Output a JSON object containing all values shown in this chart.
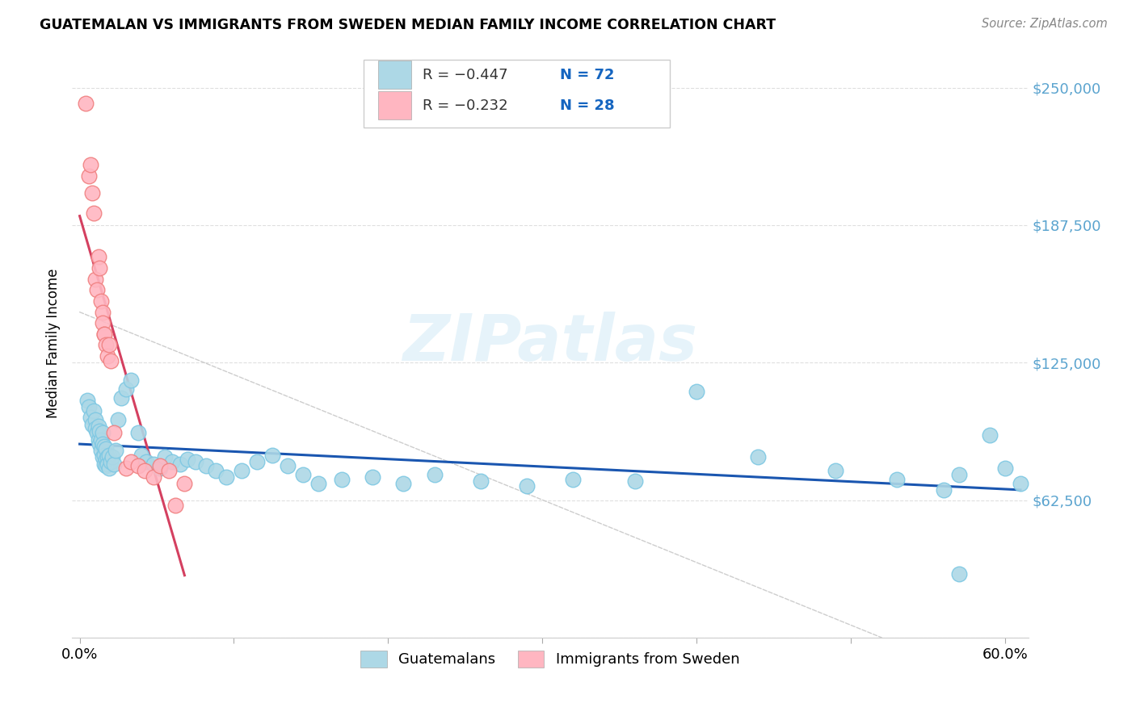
{
  "title": "GUATEMALAN VS IMMIGRANTS FROM SWEDEN MEDIAN FAMILY INCOME CORRELATION CHART",
  "source": "Source: ZipAtlas.com",
  "ylabel": "Median Family Income",
  "watermark": "ZIPatlas",
  "yticks": [
    0,
    62500,
    125000,
    187500,
    250000
  ],
  "ytick_labels": [
    "",
    "$62,500",
    "$125,000",
    "$187,500",
    "$250,000"
  ],
  "xlim": [
    -0.005,
    0.615
  ],
  "ylim": [
    0,
    268000
  ],
  "legend_blue_r": "R = -0.447",
  "legend_blue_n": "N = 72",
  "legend_pink_r": "R = -0.232",
  "legend_pink_n": "N = 28",
  "legend_label_blue": "Guatemalans",
  "legend_label_pink": "Immigrants from Sweden",
  "blue_color": "#ADD8E6",
  "blue_edge_color": "#7EC8E3",
  "blue_line_color": "#1A56B0",
  "pink_color": "#FFB6C1",
  "pink_edge_color": "#F08080",
  "pink_line_color": "#D44060",
  "dashed_line_color": "#C8C8C8",
  "grid_color": "#DCDCDC",
  "ytick_color": "#5BA4CF",
  "blue_scatter_x": [
    0.005,
    0.006,
    0.007,
    0.008,
    0.009,
    0.01,
    0.01,
    0.011,
    0.012,
    0.012,
    0.013,
    0.013,
    0.014,
    0.014,
    0.015,
    0.015,
    0.015,
    0.016,
    0.016,
    0.016,
    0.017,
    0.017,
    0.017,
    0.018,
    0.018,
    0.019,
    0.019,
    0.02,
    0.021,
    0.022,
    0.023,
    0.025,
    0.027,
    0.03,
    0.033,
    0.038,
    0.04,
    0.043,
    0.048,
    0.052,
    0.055,
    0.06,
    0.065,
    0.07,
    0.075,
    0.082,
    0.088,
    0.095,
    0.105,
    0.115,
    0.125,
    0.135,
    0.145,
    0.155,
    0.17,
    0.19,
    0.21,
    0.23,
    0.26,
    0.29,
    0.32,
    0.36,
    0.4,
    0.44,
    0.49,
    0.53,
    0.56,
    0.57,
    0.59,
    0.6,
    0.61,
    0.57
  ],
  "blue_scatter_y": [
    108000,
    105000,
    100000,
    97000,
    103000,
    99000,
    95000,
    93000,
    96000,
    90000,
    94000,
    88000,
    90000,
    85000,
    93000,
    88000,
    82000,
    87000,
    83000,
    79000,
    86000,
    81000,
    78000,
    82000,
    79000,
    83000,
    77000,
    80000,
    82000,
    79000,
    85000,
    99000,
    109000,
    113000,
    117000,
    93000,
    83000,
    80000,
    79000,
    77000,
    82000,
    80000,
    79000,
    81000,
    80000,
    78000,
    76000,
    73000,
    76000,
    80000,
    83000,
    78000,
    74000,
    70000,
    72000,
    73000,
    70000,
    74000,
    71000,
    69000,
    72000,
    71000,
    112000,
    82000,
    76000,
    72000,
    67000,
    74000,
    92000,
    77000,
    70000,
    29000
  ],
  "pink_scatter_x": [
    0.004,
    0.006,
    0.007,
    0.008,
    0.009,
    0.01,
    0.011,
    0.012,
    0.013,
    0.014,
    0.015,
    0.015,
    0.016,
    0.016,
    0.017,
    0.018,
    0.019,
    0.02,
    0.022,
    0.03,
    0.033,
    0.038,
    0.042,
    0.048,
    0.052,
    0.058,
    0.062,
    0.068
  ],
  "pink_scatter_y": [
    243000,
    210000,
    215000,
    202000,
    193000,
    163000,
    158000,
    173000,
    168000,
    153000,
    148000,
    143000,
    138000,
    138000,
    133000,
    128000,
    133000,
    126000,
    93000,
    77000,
    80000,
    78000,
    76000,
    73000,
    78000,
    76000,
    60000,
    70000
  ]
}
